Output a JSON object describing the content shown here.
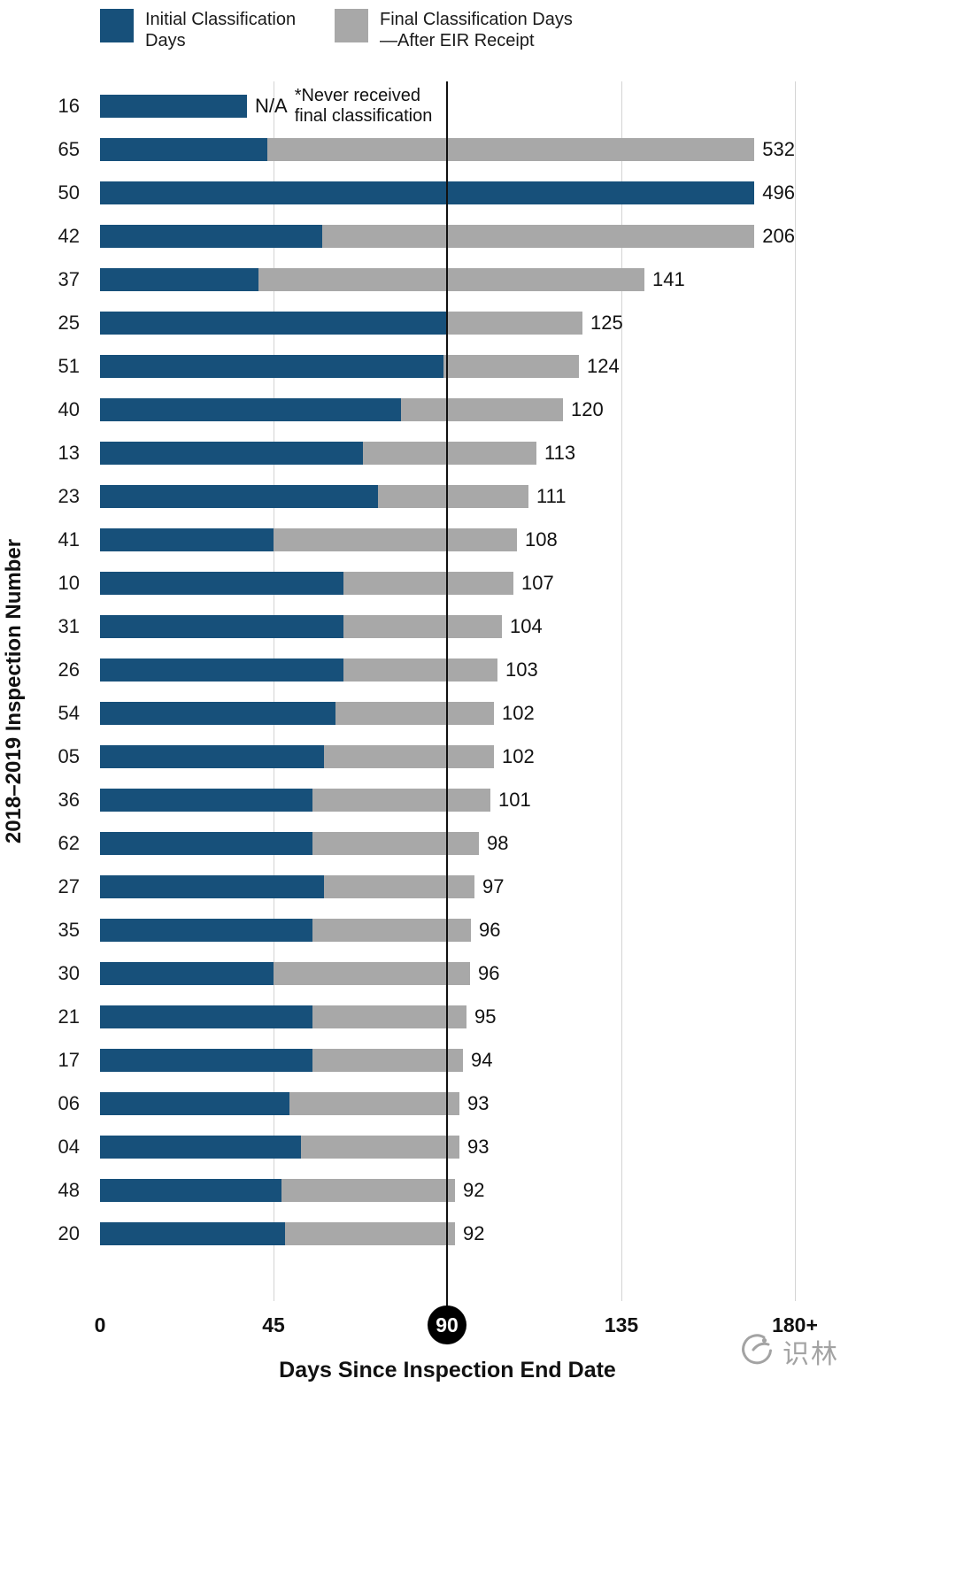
{
  "legend": {
    "items": [
      {
        "label": "Initial Classification Days",
        "color": "#17507a"
      },
      {
        "label": "Final Classification Days—After EIR Receipt",
        "color": "#a8a8a8"
      }
    ]
  },
  "colors": {
    "initial_bar": "#17507a",
    "final_bar": "#a8a8a8",
    "reference_line": "#000000",
    "gridline": "#d4d4d4",
    "tick_circle_bg": "#000000",
    "tick_circle_text": "#ffffff"
  },
  "watermark": {
    "text": "识林"
  },
  "chart_data": {
    "type": "bar",
    "orientation": "horizontal",
    "stacked": true,
    "xlabel": "Days Since Inspection End Date",
    "ylabel": "2018–2019 Inspection Number",
    "xlim": [
      0,
      180
    ],
    "axis_cap_label": "180+",
    "reference_line_value": 90,
    "grid": "vertical",
    "legend_position": "top-left",
    "gridline_values": [
      45,
      135,
      180
    ],
    "xticks": [
      {
        "label": "0",
        "value": 0,
        "emphasis": false
      },
      {
        "label": "45",
        "value": 45,
        "emphasis": false
      },
      {
        "label": "90",
        "value": 90,
        "emphasis": true
      },
      {
        "label": "135",
        "value": 135,
        "emphasis": false
      },
      {
        "label": "180+",
        "value": 180,
        "emphasis": false
      }
    ],
    "series_names": [
      "Initial Classification Days",
      "Final Classification Days—After EIR Receipt"
    ],
    "rows": [
      {
        "id": "16",
        "initial": 38,
        "total": null,
        "label": "N/A",
        "annotation": "*Never received final classification"
      },
      {
        "id": "65",
        "initial": 46,
        "total": 532,
        "label": "532"
      },
      {
        "id": "50",
        "initial": 496,
        "total": 496,
        "label": "496"
      },
      {
        "id": "42",
        "initial": 61,
        "total": 206,
        "label": "206"
      },
      {
        "id": "37",
        "initial": 41,
        "total": 141,
        "label": "141"
      },
      {
        "id": "25",
        "initial": 90,
        "total": 125,
        "label": "125"
      },
      {
        "id": "51",
        "initial": 89,
        "total": 124,
        "label": "124"
      },
      {
        "id": "40",
        "initial": 78,
        "total": 120,
        "label": "120"
      },
      {
        "id": "13",
        "initial": 68,
        "total": 113,
        "label": "113"
      },
      {
        "id": "23",
        "initial": 72,
        "total": 111,
        "label": "111"
      },
      {
        "id": "41",
        "initial": 45,
        "total": 108,
        "label": "108"
      },
      {
        "id": "10",
        "initial": 63,
        "total": 107,
        "label": "107"
      },
      {
        "id": "31",
        "initial": 63,
        "total": 104,
        "label": "104"
      },
      {
        "id": "26",
        "initial": 63,
        "total": 103,
        "label": "103"
      },
      {
        "id": "54",
        "initial": 61,
        "total": 102,
        "label": "102"
      },
      {
        "id": "05",
        "initial": 58,
        "total": 102,
        "label": "102"
      },
      {
        "id": "36",
        "initial": 55,
        "total": 101,
        "label": "101"
      },
      {
        "id": "62",
        "initial": 55,
        "total": 98,
        "label": "98"
      },
      {
        "id": "27",
        "initial": 58,
        "total": 97,
        "label": "97"
      },
      {
        "id": "35",
        "initial": 55,
        "total": 96,
        "label": "96"
      },
      {
        "id": "30",
        "initial": 45,
        "total": 96,
        "label": "96"
      },
      {
        "id": "21",
        "initial": 55,
        "total": 95,
        "label": "95"
      },
      {
        "id": "17",
        "initial": 55,
        "total": 94,
        "label": "94"
      },
      {
        "id": "06",
        "initial": 49,
        "total": 93,
        "label": "93"
      },
      {
        "id": "04",
        "initial": 52,
        "total": 93,
        "label": "93"
      },
      {
        "id": "48",
        "initial": 47,
        "total": 92,
        "label": "92"
      },
      {
        "id": "20",
        "initial": 48,
        "total": 92,
        "label": "92"
      }
    ]
  }
}
